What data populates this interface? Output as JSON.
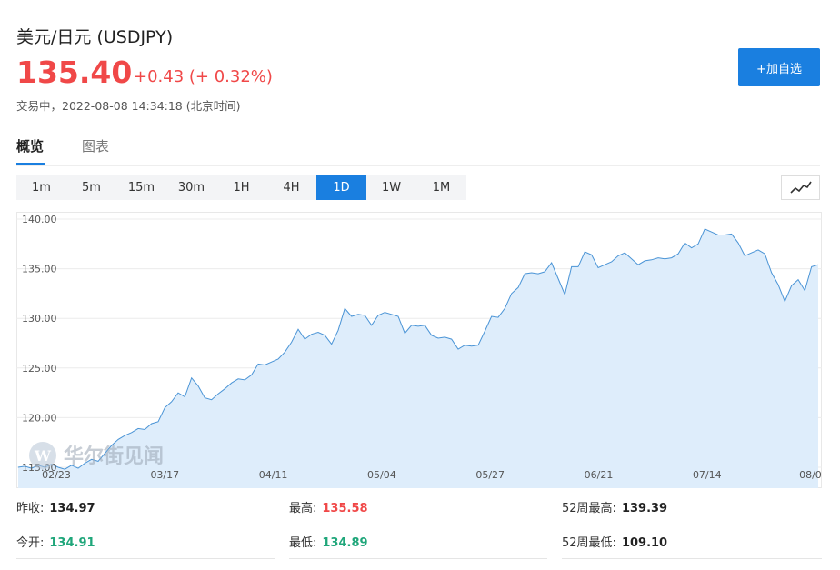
{
  "header": {
    "title": "美元/日元  (USDJPY)",
    "price": "135.40",
    "change": "+0.43 (+ 0.32%)",
    "status": "交易中，2022-08-08 14:34:18 (北京时间)",
    "add_button": "+加自选"
  },
  "tabs": [
    {
      "label": "概览",
      "active": true
    },
    {
      "label": "图表",
      "active": false
    }
  ],
  "periods": [
    {
      "label": "1m",
      "active": false
    },
    {
      "label": "5m",
      "active": false
    },
    {
      "label": "15m",
      "active": false
    },
    {
      "label": "30m",
      "active": false
    },
    {
      "label": "1H",
      "active": false
    },
    {
      "label": "4H",
      "active": false
    },
    {
      "label": "1D",
      "active": true
    },
    {
      "label": "1W",
      "active": false
    },
    {
      "label": "1M",
      "active": false
    }
  ],
  "watermark": "华尔街见闻",
  "colors": {
    "accent": "#1a7fe0",
    "up": "#f04848",
    "down": "#1fa67a",
    "line": "#4a94d6",
    "fill": "#deedfb"
  },
  "chart_data": {
    "type": "area",
    "ylim": [
      114,
      141
    ],
    "y_ticks": [
      "140.00",
      "135.00",
      "130.00",
      "125.00",
      "120.00",
      "115.00"
    ],
    "x_ticks": [
      "02/23",
      "03/17",
      "04/11",
      "05/04",
      "05/27",
      "06/21",
      "07/14",
      "08/0"
    ],
    "values": [
      115.0,
      115.1,
      114.9,
      115.2,
      115.0,
      115.3,
      115.0,
      114.8,
      115.2,
      114.9,
      115.4,
      115.8,
      115.6,
      116.4,
      117.2,
      117.8,
      118.2,
      118.5,
      118.9,
      118.8,
      119.4,
      119.6,
      121.0,
      121.6,
      122.5,
      122.1,
      124.0,
      123.2,
      122.0,
      121.8,
      122.4,
      122.9,
      123.5,
      123.9,
      123.8,
      124.3,
      125.4,
      125.3,
      125.6,
      125.9,
      126.6,
      127.6,
      128.9,
      127.9,
      128.4,
      128.6,
      128.3,
      127.4,
      128.8,
      131.0,
      130.2,
      130.4,
      130.3,
      129.3,
      130.3,
      130.6,
      130.4,
      130.2,
      128.5,
      129.3,
      129.2,
      129.3,
      128.3,
      128.0,
      128.1,
      127.9,
      126.9,
      127.3,
      127.2,
      127.3,
      128.7,
      130.2,
      130.1,
      131.0,
      132.5,
      133.1,
      134.5,
      134.6,
      134.5,
      134.7,
      135.6,
      134.0,
      132.4,
      135.2,
      135.2,
      136.7,
      136.4,
      135.1,
      135.4,
      135.7,
      136.3,
      136.6,
      136.0,
      135.4,
      135.8,
      135.9,
      136.1,
      136.0,
      136.1,
      136.5,
      137.6,
      137.1,
      137.5,
      139.0,
      138.7,
      138.4,
      138.4,
      138.5,
      137.6,
      136.3,
      136.6,
      136.9,
      136.5,
      134.6,
      133.4,
      131.7,
      133.3,
      133.9,
      132.8,
      135.2,
      135.4
    ],
    "grid": true
  },
  "stats": [
    {
      "label": "昨收:",
      "value": "134.97",
      "tone": "neutral"
    },
    {
      "label": "最高:",
      "value": "135.58",
      "tone": "up"
    },
    {
      "label": "52周最高:",
      "value": "139.39",
      "tone": "neutral"
    },
    {
      "label": "今开:",
      "value": "134.91",
      "tone": "down"
    },
    {
      "label": "最低:",
      "value": "134.89",
      "tone": "down"
    },
    {
      "label": "52周最低:",
      "value": "109.10",
      "tone": "neutral"
    }
  ]
}
